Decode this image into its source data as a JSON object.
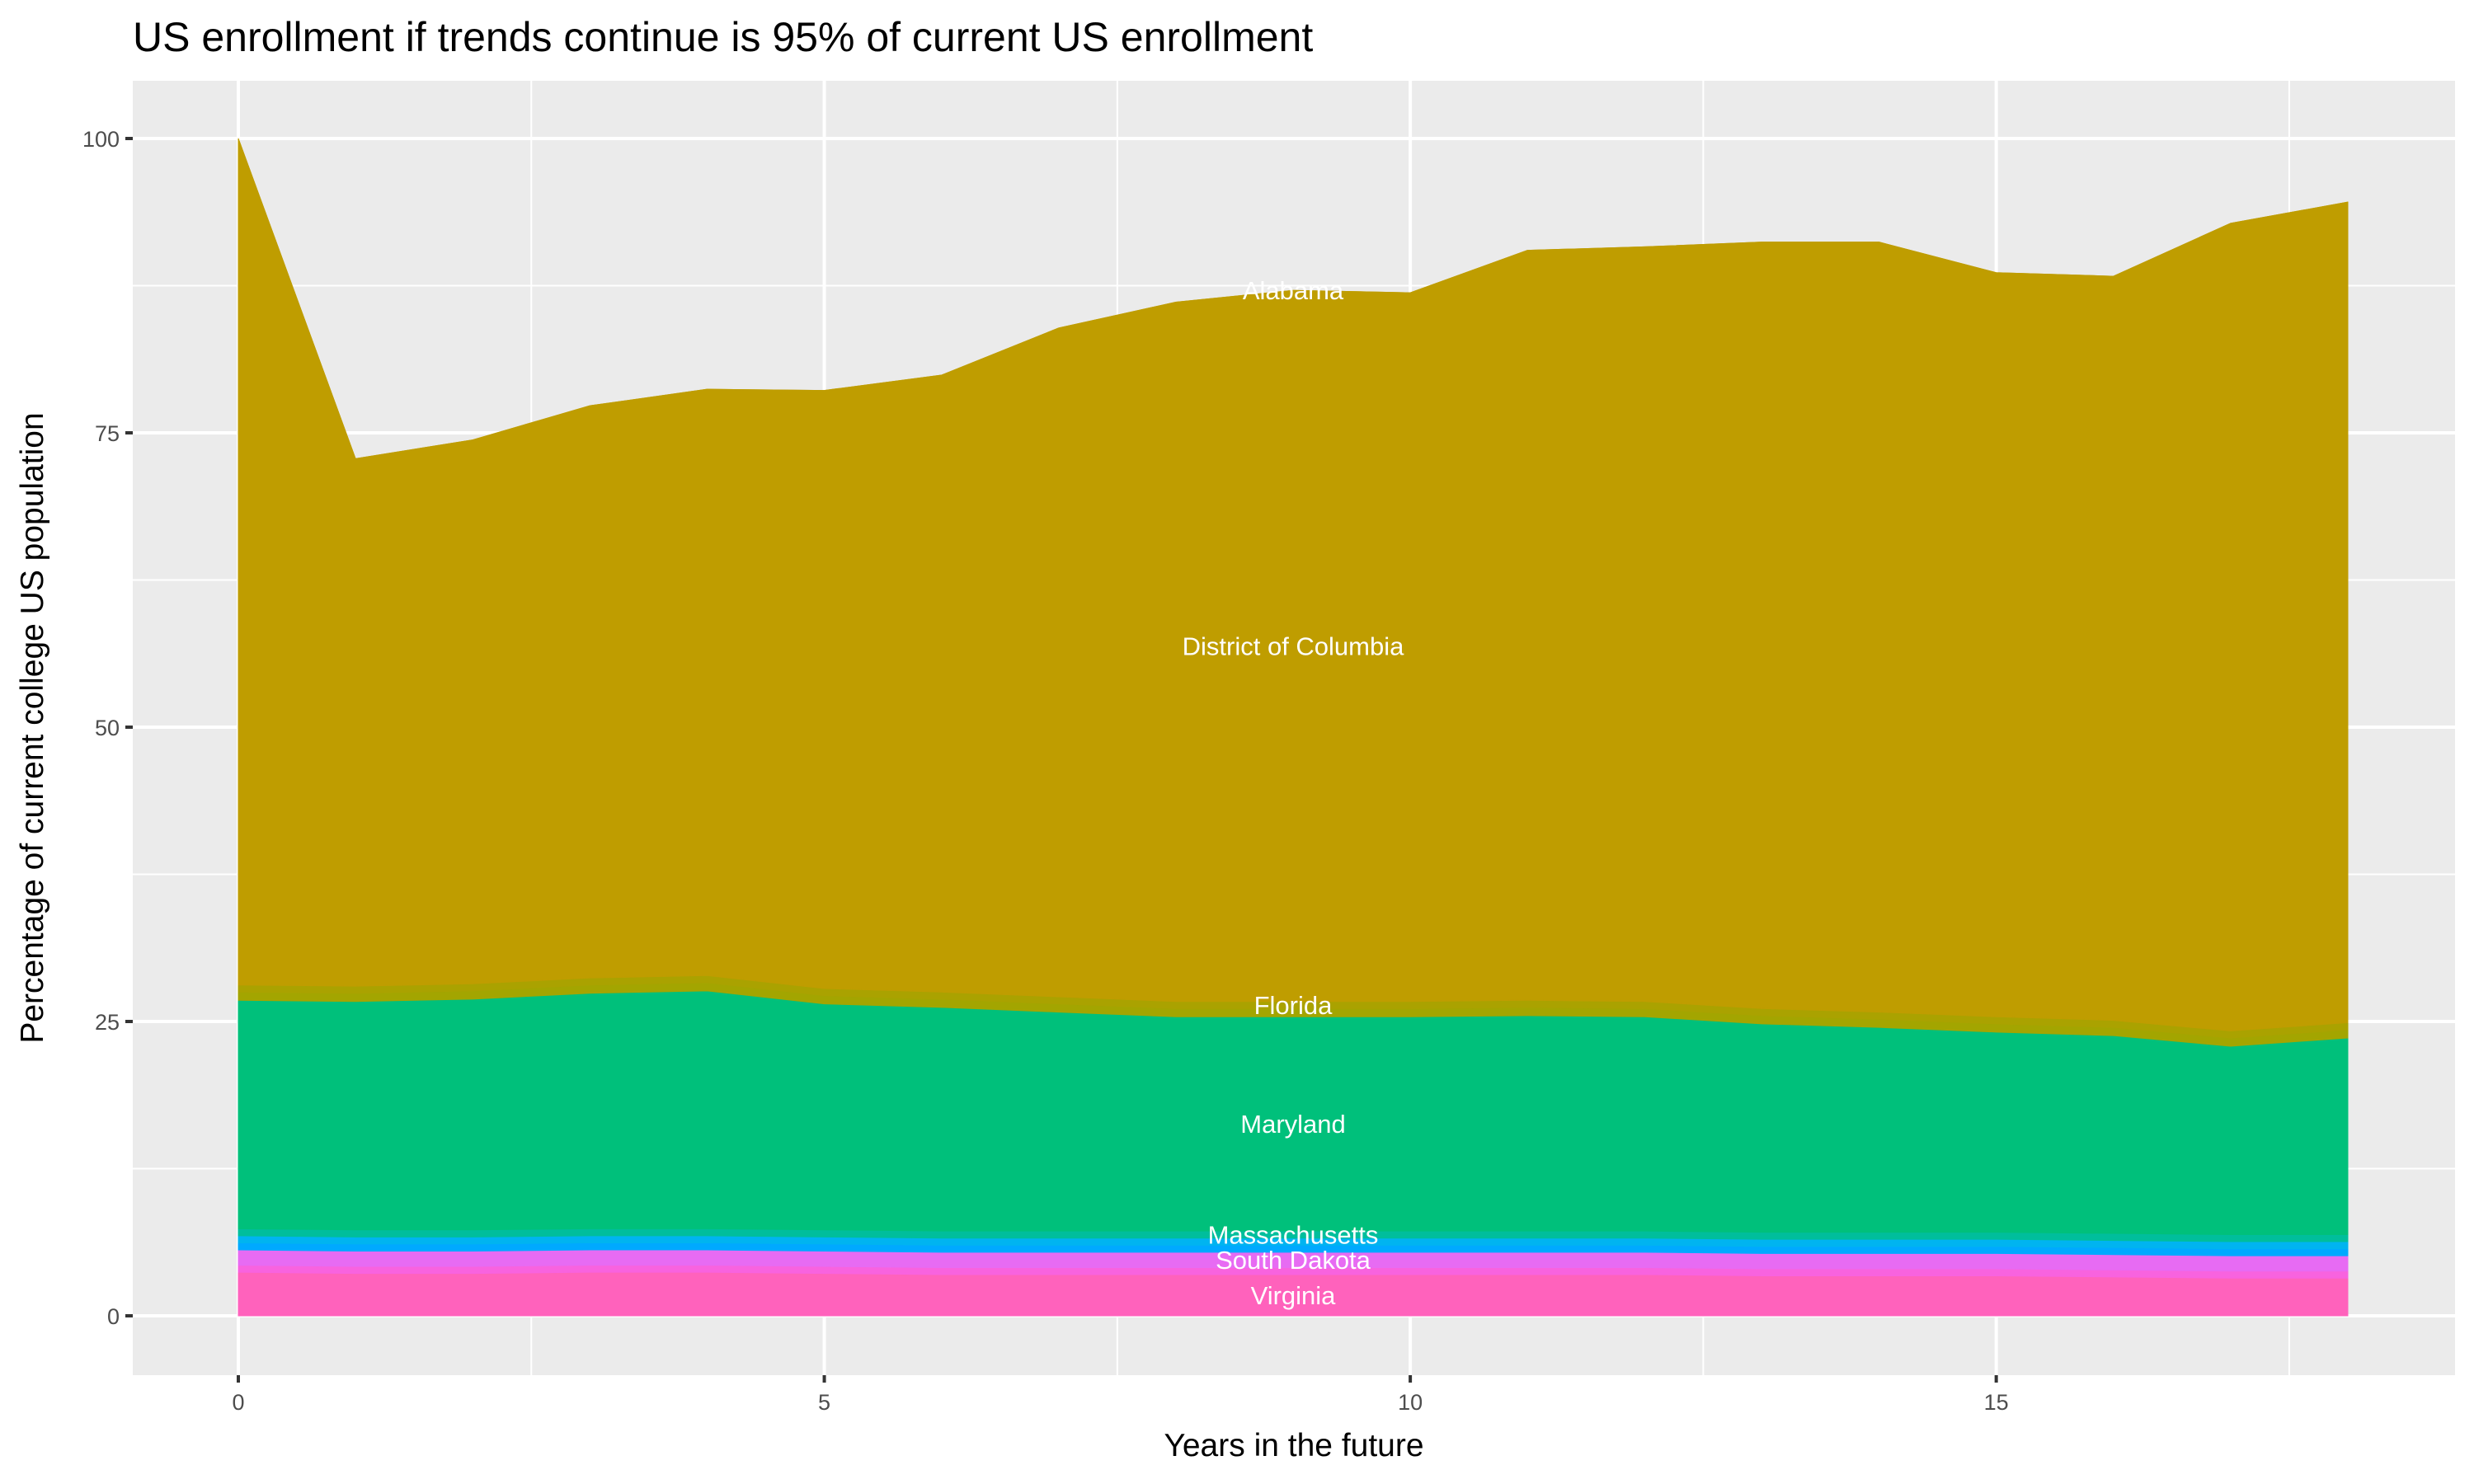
{
  "chart_data": {
    "type": "area",
    "stacked": true,
    "title": "US enrollment if trends continue is 95% of current US enrollment",
    "xlabel": "Years in the future",
    "ylabel": "Percentage of current college US population",
    "xlim": [
      0,
      18
    ],
    "ylim": [
      0,
      100
    ],
    "x_ticks": [
      "0",
      "5",
      "10",
      "15"
    ],
    "y_ticks": [
      "0",
      "25",
      "50",
      "75",
      "100"
    ],
    "grid": true,
    "legend": "none",
    "x": [
      0,
      1,
      2,
      3,
      4,
      5,
      6,
      7,
      8,
      9,
      10,
      11,
      12,
      13,
      14,
      15,
      16,
      17,
      18
    ],
    "series": [
      {
        "name": "Virginia",
        "color": "#FF62BC",
        "values": [
          3.7,
          3.6,
          3.6,
          3.7,
          3.7,
          3.6,
          3.5,
          3.5,
          3.5,
          3.5,
          3.5,
          3.5,
          3.5,
          3.4,
          3.4,
          3.4,
          3.3,
          3.2,
          3.2
        ]
      },
      {
        "color": "#F863DF",
        "values": [
          0.6,
          0.6,
          0.6,
          0.6,
          0.6,
          0.6,
          0.6,
          0.6,
          0.6,
          0.6,
          0.6,
          0.6,
          0.6,
          0.6,
          0.6,
          0.6,
          0.6,
          0.6,
          0.6
        ]
      },
      {
        "name": "South Dakota",
        "color": "#E76BF3",
        "values": [
          1.3,
          1.3,
          1.3,
          1.3,
          1.3,
          1.3,
          1.3,
          1.3,
          1.3,
          1.3,
          1.3,
          1.3,
          1.3,
          1.3,
          1.3,
          1.3,
          1.3,
          1.3,
          1.3
        ]
      },
      {
        "color": "#00A9FF",
        "values": [
          0.6,
          0.6,
          0.6,
          0.6,
          0.6,
          0.6,
          0.6,
          0.6,
          0.6,
          0.6,
          0.6,
          0.6,
          0.6,
          0.6,
          0.6,
          0.6,
          0.6,
          0.6,
          0.6
        ]
      },
      {
        "color": "#00B4F0",
        "values": [
          0.6,
          0.6,
          0.6,
          0.6,
          0.6,
          0.6,
          0.6,
          0.6,
          0.6,
          0.6,
          0.6,
          0.6,
          0.6,
          0.6,
          0.6,
          0.6,
          0.6,
          0.6,
          0.6
        ]
      },
      {
        "name": "Massachusetts",
        "color": "#00BE9C",
        "values": [
          0.6,
          0.6,
          0.6,
          0.6,
          0.6,
          0.6,
          0.6,
          0.6,
          0.6,
          0.6,
          0.6,
          0.6,
          0.6,
          0.6,
          0.6,
          0.6,
          0.6,
          0.6,
          0.6
        ]
      },
      {
        "name": "Maryland",
        "color": "#00C07B",
        "values": [
          19.4,
          19.4,
          19.6,
          20.0,
          20.2,
          19.2,
          19.0,
          18.6,
          18.2,
          18.2,
          18.2,
          18.3,
          18.2,
          17.7,
          17.4,
          17.0,
          16.8,
          16.0,
          16.7
        ]
      },
      {
        "color": "#A3A500",
        "values": [
          0.7,
          0.7,
          0.7,
          0.7,
          0.7,
          0.7,
          0.7,
          0.7,
          0.7,
          0.7,
          0.7,
          0.7,
          0.7,
          0.7,
          0.7,
          0.7,
          0.7,
          0.7,
          0.7
        ]
      },
      {
        "name": "Florida",
        "color": "#AAA200",
        "values": [
          0.6,
          0.6,
          0.6,
          0.6,
          0.6,
          0.6,
          0.6,
          0.6,
          0.6,
          0.6,
          0.6,
          0.6,
          0.6,
          0.6,
          0.6,
          0.6,
          0.6,
          0.6,
          0.6
        ]
      },
      {
        "name": "District of Columbia",
        "color": "#BF9D00",
        "values": [
          71.9,
          44.8,
          46.2,
          48.6,
          49.8,
          50.8,
          52.4,
          56.8,
          59.4,
          60.4,
          60.2,
          63.7,
          64.1,
          65.1,
          65.4,
          63.2,
          63.2,
          68.6,
          69.7
        ]
      },
      {
        "name": "Alabama",
        "color": "#BF9D00",
        "values": [
          0,
          0,
          0,
          0,
          0,
          0,
          0,
          0,
          0,
          0,
          0,
          0,
          0,
          0,
          0,
          0,
          0,
          0,
          0
        ]
      }
    ],
    "colors": {
      "panel": "#EBEBEB",
      "grid": "#FFFFFF",
      "label": "#FFFFFF"
    }
  }
}
